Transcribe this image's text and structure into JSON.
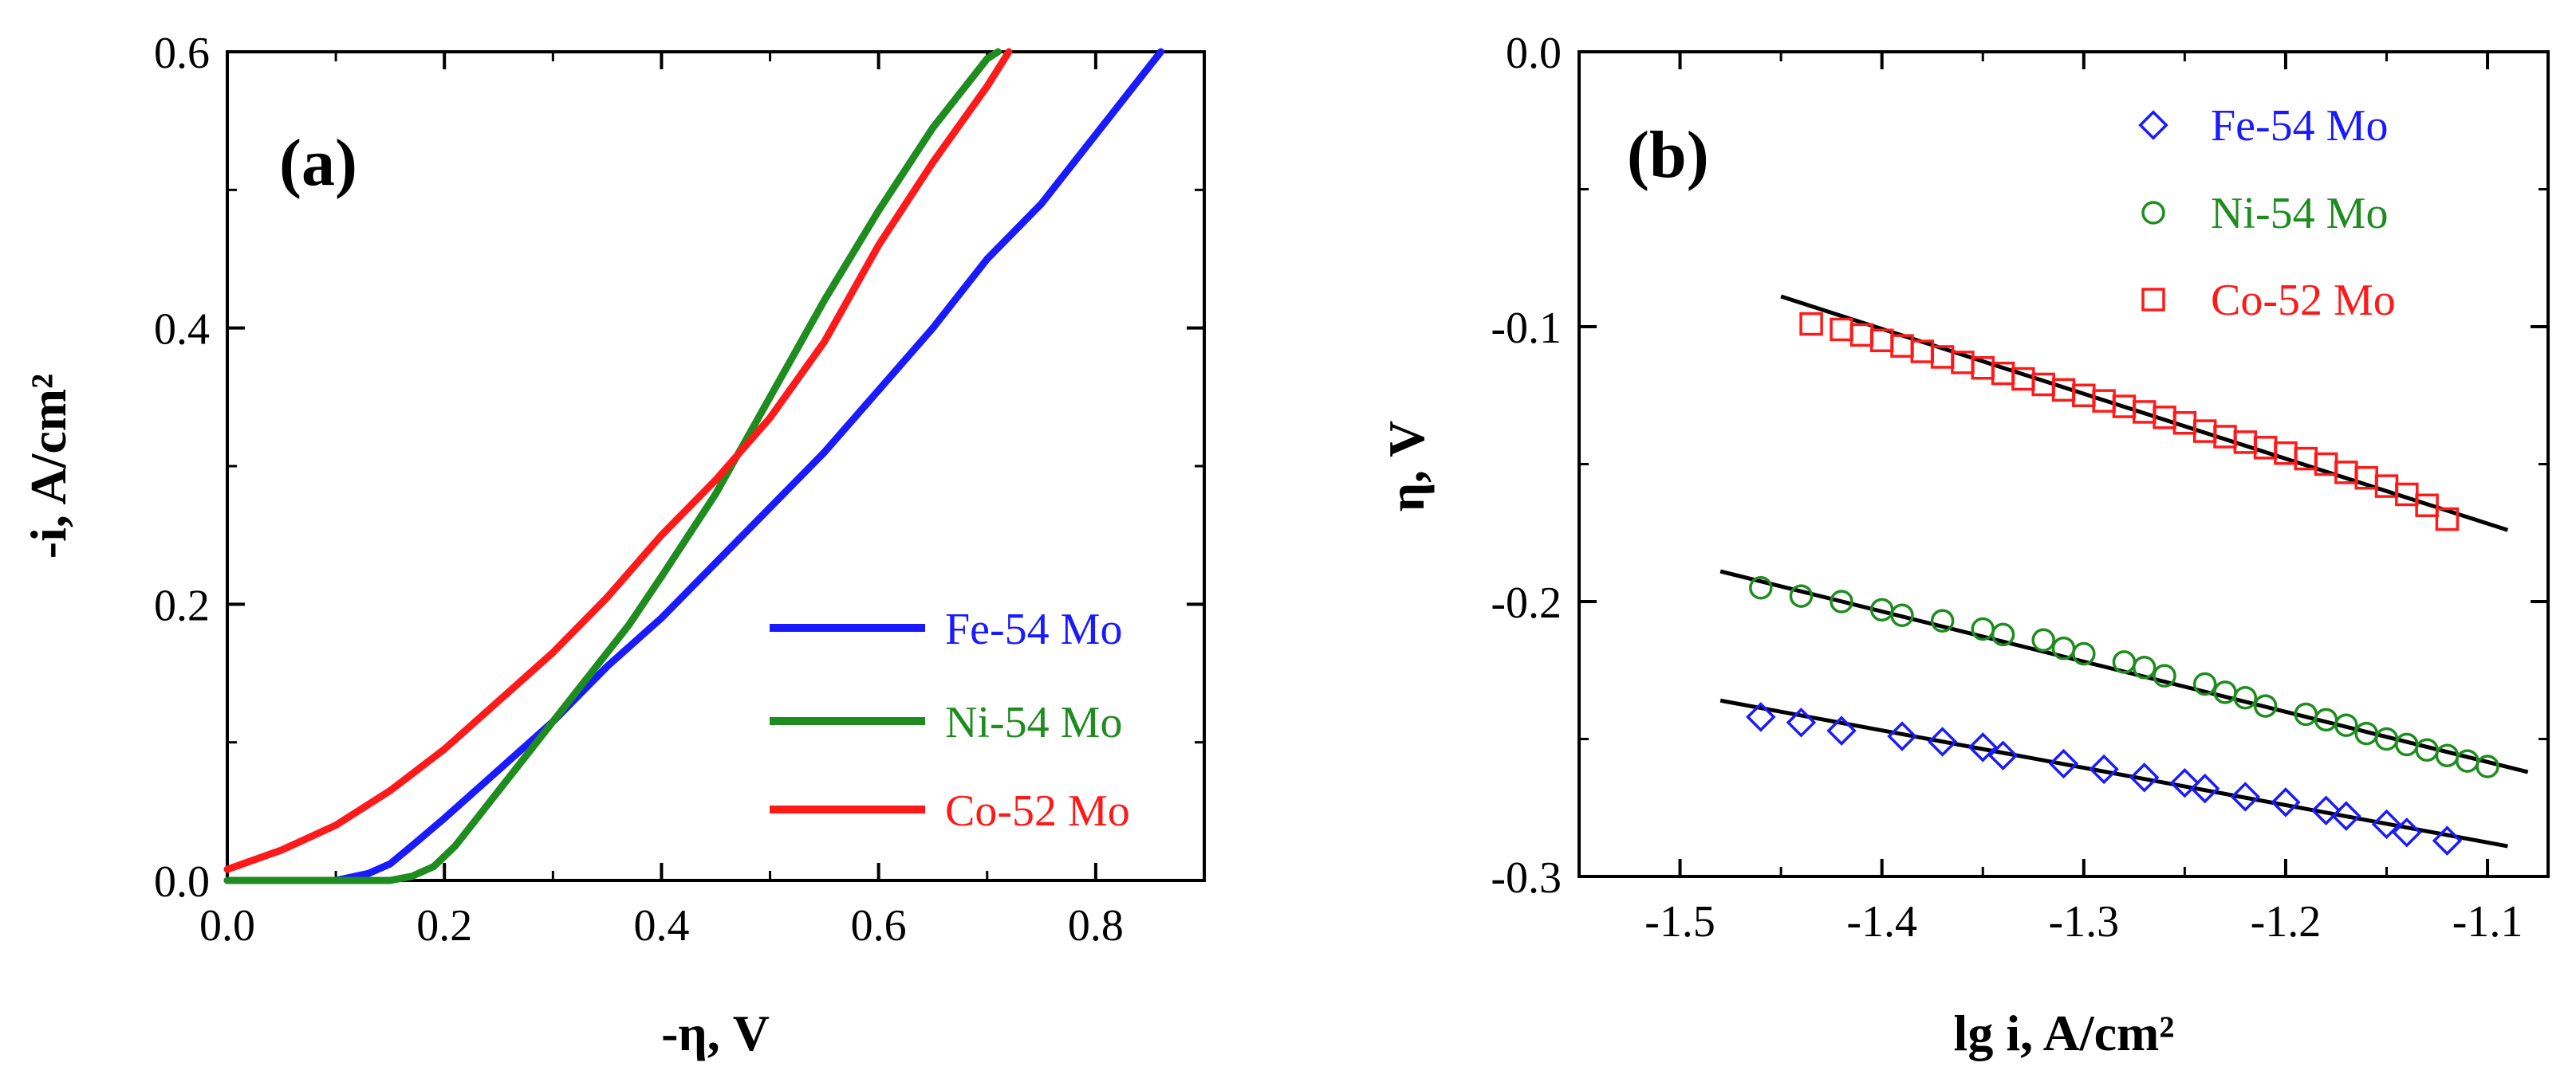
{
  "colors": {
    "fe": "#1a1aff",
    "ni": "#1e8c1e",
    "co": "#ff1a1a",
    "axis": "#000000"
  },
  "chart_data": [
    {
      "panel": "(a)",
      "type": "line",
      "xlabel": "-η, V",
      "ylabel": "-i, A/cm²",
      "xlim": [
        0,
        0.9
      ],
      "ylim": [
        0,
        0.6
      ],
      "xticks": [
        0.0,
        0.2,
        0.4,
        0.6,
        0.8
      ],
      "yticks": [
        0.0,
        0.2,
        0.4,
        0.6
      ],
      "xtick_labels": [
        "0.0",
        "0.2",
        "0.4",
        "0.6",
        "0.8"
      ],
      "ytick_labels": [
        "0.0",
        "0.2",
        "0.4",
        "0.6"
      ],
      "legend_position": "bottom-right",
      "series": [
        {
          "name": "Fe-54 Mo",
          "color_key": "fe",
          "x": [
            0.0,
            0.1,
            0.13,
            0.15,
            0.17,
            0.2,
            0.25,
            0.3,
            0.35,
            0.4,
            0.45,
            0.5,
            0.55,
            0.6,
            0.65,
            0.7,
            0.75,
            0.8,
            0.85,
            0.86
          ],
          "y": [
            0.0,
            0.0,
            0.005,
            0.012,
            0.025,
            0.045,
            0.08,
            0.115,
            0.155,
            0.19,
            0.23,
            0.27,
            0.31,
            0.355,
            0.4,
            0.45,
            0.49,
            0.54,
            0.59,
            0.6
          ]
        },
        {
          "name": "Ni-54 Mo",
          "color_key": "ni",
          "x": [
            0.0,
            0.15,
            0.17,
            0.19,
            0.21,
            0.23,
            0.25,
            0.28,
            0.31,
            0.34,
            0.37,
            0.4,
            0.45,
            0.5,
            0.55,
            0.6,
            0.65,
            0.7,
            0.71
          ],
          "y": [
            0.0,
            0.0,
            0.003,
            0.01,
            0.025,
            0.045,
            0.065,
            0.095,
            0.125,
            0.155,
            0.185,
            0.22,
            0.28,
            0.35,
            0.42,
            0.485,
            0.545,
            0.595,
            0.6
          ]
        },
        {
          "name": "Co-52 Mo",
          "color_key": "co",
          "x": [
            0.0,
            0.05,
            0.1,
            0.15,
            0.2,
            0.25,
            0.3,
            0.35,
            0.4,
            0.45,
            0.5,
            0.55,
            0.6,
            0.65,
            0.7,
            0.72
          ],
          "y": [
            0.008,
            0.022,
            0.04,
            0.065,
            0.095,
            0.13,
            0.165,
            0.205,
            0.25,
            0.29,
            0.335,
            0.39,
            0.46,
            0.52,
            0.575,
            0.6
          ]
        }
      ]
    },
    {
      "panel": "(b)",
      "type": "scatter",
      "xlabel": "lg i, A/cm²",
      "ylabel": "η, V",
      "xlim": [
        -1.55,
        -1.07
      ],
      "ylim": [
        -0.3,
        0.0
      ],
      "xticks": [
        -1.5,
        -1.4,
        -1.3,
        -1.2,
        -1.1
      ],
      "yticks": [
        -0.3,
        -0.2,
        -0.1,
        0.0
      ],
      "xtick_labels": [
        "-1.5",
        "-1.4",
        "-1.3",
        "-1.2",
        "-1.1"
      ],
      "ytick_labels": [
        "-0.3",
        "-0.2",
        "-0.1",
        "0.0"
      ],
      "legend_position": "top-right",
      "series": [
        {
          "name": "Fe-54 Mo",
          "color_key": "fe",
          "marker": "diamond",
          "x": [
            -1.46,
            -1.44,
            -1.42,
            -1.39,
            -1.37,
            -1.35,
            -1.34,
            -1.31,
            -1.29,
            -1.27,
            -1.25,
            -1.24,
            -1.22,
            -1.2,
            -1.18,
            -1.17,
            -1.15,
            -1.14,
            -1.12
          ],
          "y": [
            -0.242,
            -0.244,
            -0.247,
            -0.249,
            -0.251,
            -0.253,
            -0.256,
            -0.259,
            -0.261,
            -0.264,
            -0.266,
            -0.268,
            -0.271,
            -0.273,
            -0.276,
            -0.278,
            -0.281,
            -0.284,
            -0.287
          ],
          "fit": {
            "x": [
              -1.48,
              -1.09
            ],
            "y": [
              -0.236,
              -0.289
            ]
          }
        },
        {
          "name": "Ni-54 Mo",
          "color_key": "ni",
          "marker": "circle",
          "x": [
            -1.46,
            -1.44,
            -1.42,
            -1.4,
            -1.39,
            -1.37,
            -1.35,
            -1.34,
            -1.32,
            -1.31,
            -1.3,
            -1.28,
            -1.27,
            -1.26,
            -1.24,
            -1.23,
            -1.22,
            -1.21,
            -1.19,
            -1.18,
            -1.17,
            -1.16,
            -1.15,
            -1.14,
            -1.13,
            -1.12,
            -1.11,
            -1.1
          ],
          "y": [
            -0.195,
            -0.198,
            -0.2,
            -0.203,
            -0.205,
            -0.207,
            -0.21,
            -0.212,
            -0.214,
            -0.217,
            -0.219,
            -0.222,
            -0.224,
            -0.227,
            -0.23,
            -0.233,
            -0.235,
            -0.238,
            -0.241,
            -0.243,
            -0.245,
            -0.248,
            -0.25,
            -0.252,
            -0.254,
            -0.256,
            -0.258,
            -0.26
          ],
          "fit": {
            "x": [
              -1.48,
              -1.08
            ],
            "y": [
              -0.189,
              -0.262
            ]
          }
        },
        {
          "name": "Co-52 Mo",
          "color_key": "co",
          "marker": "square",
          "x": [
            -1.435,
            -1.42,
            -1.41,
            -1.4,
            -1.39,
            -1.38,
            -1.37,
            -1.36,
            -1.35,
            -1.34,
            -1.33,
            -1.32,
            -1.31,
            -1.3,
            -1.29,
            -1.28,
            -1.27,
            -1.26,
            -1.25,
            -1.24,
            -1.23,
            -1.22,
            -1.21,
            -1.2,
            -1.19,
            -1.18,
            -1.17,
            -1.16,
            -1.15,
            -1.14,
            -1.13,
            -1.12
          ],
          "y": [
            -0.099,
            -0.101,
            -0.103,
            -0.105,
            -0.107,
            -0.109,
            -0.111,
            -0.113,
            -0.115,
            -0.117,
            -0.119,
            -0.121,
            -0.123,
            -0.125,
            -0.127,
            -0.129,
            -0.131,
            -0.133,
            -0.135,
            -0.138,
            -0.14,
            -0.142,
            -0.144,
            -0.146,
            -0.148,
            -0.15,
            -0.153,
            -0.155,
            -0.158,
            -0.161,
            -0.165,
            -0.17
          ],
          "fit": {
            "x": [
              -1.45,
              -1.09
            ],
            "y": [
              -0.089,
              -0.174
            ]
          }
        }
      ]
    }
  ]
}
